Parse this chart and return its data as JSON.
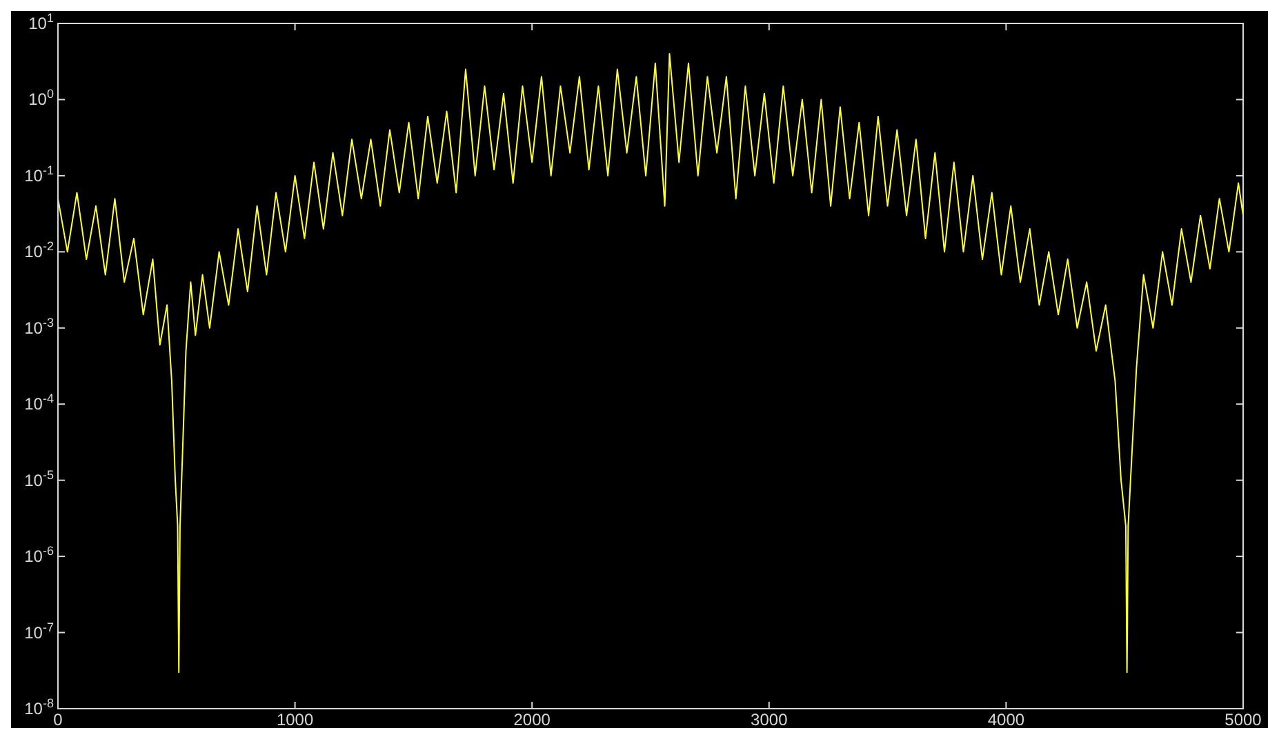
{
  "chart_data": {
    "type": "line",
    "log": "y",
    "grid": false,
    "line_style": "solid",
    "marker": "none",
    "xlim": [
      0,
      5000
    ],
    "xticks": [
      0,
      1000,
      2000,
      3000,
      4000,
      5000
    ],
    "ylim": [
      1e-08,
      10
    ],
    "yticks": [
      {
        "value": 1e-08,
        "label": "10$^{-8}$"
      },
      {
        "value": 1e-07,
        "label": "10$^{-7}$"
      },
      {
        "value": 1e-06,
        "label": "10$^{-6}$"
      },
      {
        "value": 1e-05,
        "label": "10$^{-5}$"
      },
      {
        "value": 0.0001,
        "label": "10$^{-4}$"
      },
      {
        "value": 0.001,
        "label": "10$^{-3}$"
      },
      {
        "value": 0.01,
        "label": "10$^{-2}$"
      },
      {
        "value": 0.1,
        "label": "10$^{-1}$"
      },
      {
        "value": 1,
        "label": "10$^{0}$"
      },
      {
        "value": 10,
        "label": "10$^{1}$"
      }
    ],
    "series": [
      {
        "color": "#ffff33",
        "x": [
          0,
          40,
          80,
          120,
          160,
          200,
          240,
          280,
          320,
          360,
          400,
          430,
          460,
          480,
          495,
          505,
          510,
          515,
          525,
          540,
          560,
          580,
          610,
          640,
          680,
          720,
          760,
          800,
          840,
          880,
          920,
          960,
          1000,
          1040,
          1080,
          1120,
          1160,
          1200,
          1240,
          1280,
          1320,
          1360,
          1400,
          1440,
          1480,
          1520,
          1560,
          1600,
          1640,
          1680,
          1720,
          1760,
          1800,
          1840,
          1880,
          1920,
          1960,
          2000,
          2040,
          2080,
          2120,
          2160,
          2200,
          2240,
          2280,
          2320,
          2360,
          2400,
          2440,
          2480,
          2520,
          2560,
          2580,
          2620,
          2660,
          2700,
          2740,
          2780,
          2820,
          2860,
          2900,
          2940,
          2980,
          3020,
          3060,
          3100,
          3140,
          3180,
          3220,
          3260,
          3300,
          3340,
          3380,
          3420,
          3460,
          3500,
          3540,
          3580,
          3620,
          3660,
          3700,
          3740,
          3780,
          3820,
          3860,
          3900,
          3940,
          3980,
          4020,
          4060,
          4100,
          4140,
          4180,
          4220,
          4260,
          4300,
          4340,
          4380,
          4420,
          4460,
          4485,
          4505,
          4510,
          4515,
          4530,
          4550,
          4580,
          4620,
          4660,
          4700,
          4740,
          4780,
          4820,
          4860,
          4900,
          4940,
          4980,
          5000
        ],
        "values": [
          0.05,
          0.01,
          0.06,
          0.008,
          0.04,
          0.005,
          0.05,
          0.004,
          0.015,
          0.0015,
          0.008,
          0.0006,
          0.002,
          0.0002,
          1e-05,
          2.5e-06,
          3e-08,
          2.5e-06,
          2e-05,
          0.0005,
          0.004,
          0.0008,
          0.005,
          0.001,
          0.01,
          0.002,
          0.02,
          0.003,
          0.04,
          0.005,
          0.06,
          0.01,
          0.1,
          0.015,
          0.15,
          0.02,
          0.2,
          0.03,
          0.3,
          0.05,
          0.3,
          0.04,
          0.4,
          0.06,
          0.5,
          0.05,
          0.6,
          0.08,
          0.7,
          0.06,
          2.5,
          0.1,
          1.5,
          0.12,
          1.2,
          0.08,
          1.5,
          0.15,
          2,
          0.1,
          1.5,
          0.2,
          2,
          0.12,
          1.5,
          0.1,
          2.5,
          0.2,
          2,
          0.1,
          3,
          0.04,
          4,
          0.15,
          3,
          0.1,
          2,
          0.2,
          2,
          0.05,
          1.5,
          0.1,
          1.2,
          0.08,
          1.5,
          0.1,
          1,
          0.06,
          1,
          0.04,
          0.8,
          0.05,
          0.5,
          0.03,
          0.6,
          0.04,
          0.4,
          0.03,
          0.3,
          0.015,
          0.2,
          0.01,
          0.15,
          0.01,
          0.1,
          0.008,
          0.06,
          0.005,
          0.04,
          0.004,
          0.02,
          0.002,
          0.01,
          0.0015,
          0.008,
          0.001,
          0.004,
          0.0005,
          0.002,
          0.0002,
          1e-05,
          2.5e-06,
          3e-08,
          2.5e-06,
          2e-05,
          0.0003,
          0.005,
          0.001,
          0.01,
          0.002,
          0.02,
          0.004,
          0.03,
          0.006,
          0.05,
          0.01,
          0.08,
          0.03
        ]
      }
    ]
  }
}
